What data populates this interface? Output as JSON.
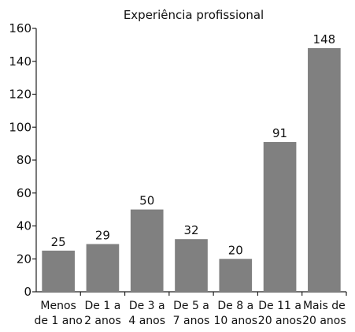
{
  "chart_data": {
    "type": "bar",
    "title": "Experiência profissional",
    "categories": [
      [
        "Menos",
        "de 1 ano"
      ],
      [
        "De 1 a",
        "2 anos"
      ],
      [
        "De 3 a",
        "4 anos"
      ],
      [
        "De 5 a",
        "7 anos"
      ],
      [
        "De 8 a",
        "10 anos"
      ],
      [
        "De 11 a",
        "20 anos"
      ],
      [
        "Mais de",
        "20 anos"
      ]
    ],
    "values": [
      25,
      29,
      50,
      32,
      20,
      91,
      148
    ],
    "data_labels": [
      "25",
      "29",
      "50",
      "32",
      "20",
      "91",
      "148"
    ],
    "xlabel": "",
    "ylabel": "",
    "ylim": [
      0,
      160
    ],
    "yticks": [
      0,
      20,
      40,
      60,
      80,
      100,
      120,
      140,
      160
    ],
    "ytick_labels": [
      "0",
      "20",
      "40",
      "60",
      "80",
      "100",
      "120",
      "140",
      "160"
    ],
    "grid": false,
    "legend": "none",
    "bar_color": "#808080",
    "axis_color": "#222222"
  }
}
